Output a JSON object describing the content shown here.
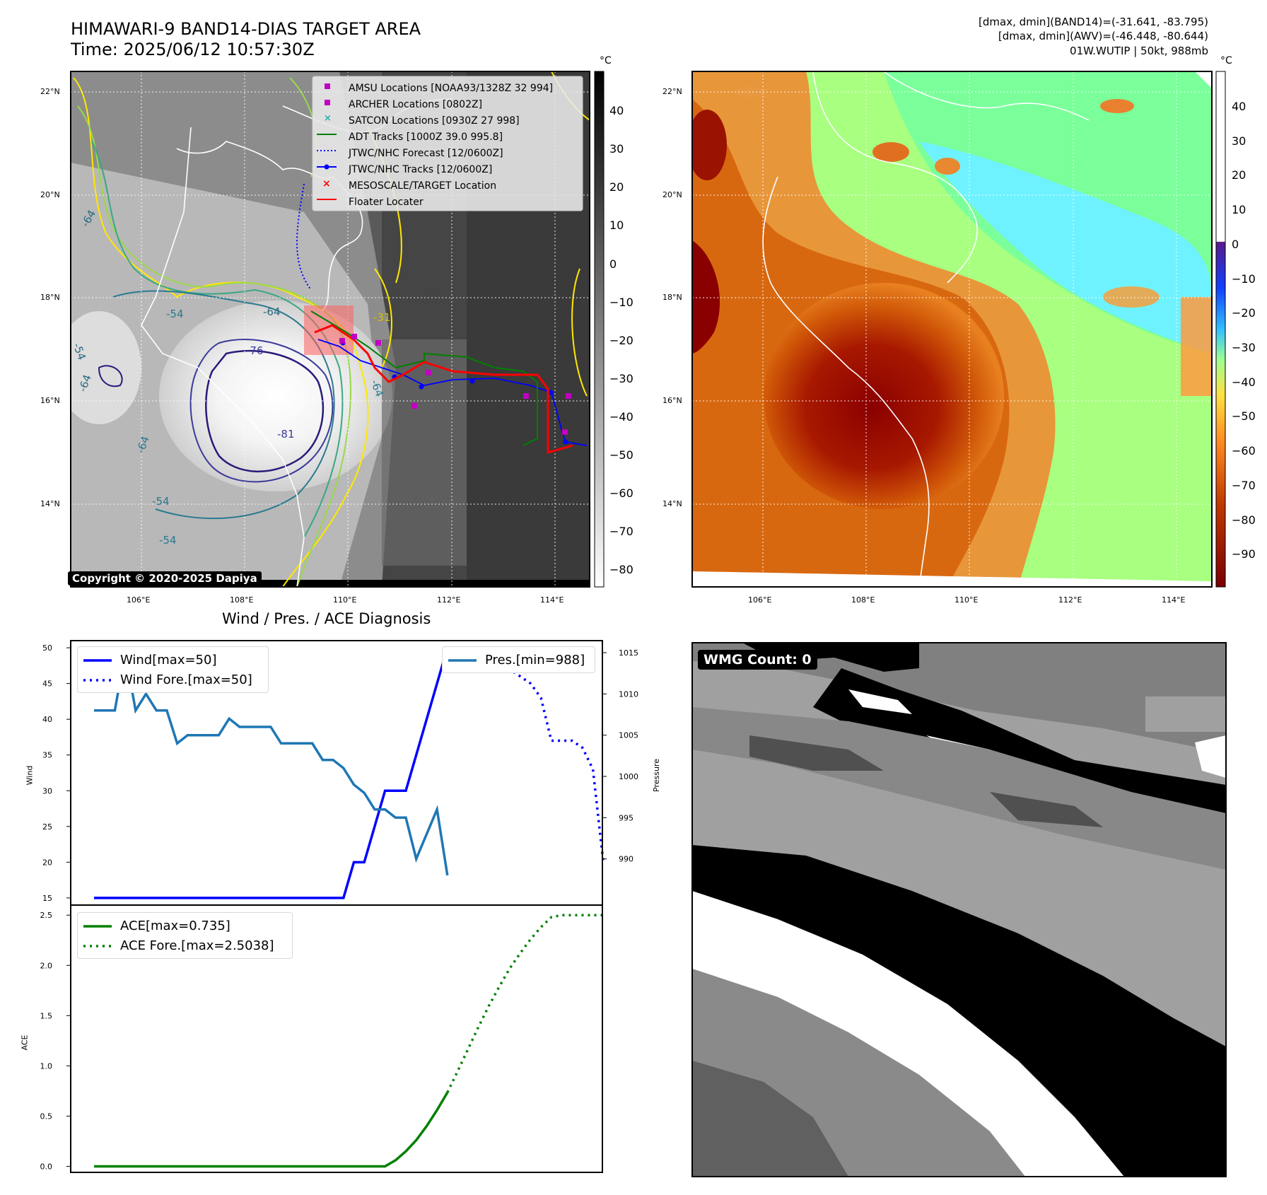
{
  "top_left": {
    "title_line1": "HIMAWARI-9 BAND14-DIAS TARGET AREA",
    "title_line2": "Time: 2025/06/12 10:57:30Z",
    "colorbar_unit": "°C",
    "colorbar_ticks": [
      "40",
      "30",
      "20",
      "10",
      "0",
      "−10",
      "−20",
      "−30",
      "−40",
      "−50",
      "−60",
      "−70",
      "−80"
    ],
    "lat_labels": [
      "22°N",
      "20°N",
      "18°N",
      "16°N",
      "14°N"
    ],
    "lon_labels": [
      "106°E",
      "108°E",
      "110°E",
      "112°E",
      "114°E"
    ],
    "contour_labels": [
      "-64",
      "-54",
      "-64",
      "-54",
      "-64",
      "-76",
      "-81",
      "-64",
      "-54",
      "-54",
      "-31",
      "-64"
    ],
    "copyright": "Copyright © 2020-2025 Dapiya",
    "legend": [
      {
        "label": "AMSU Locations [NOAA93/1328Z 32 994]",
        "color": "#c000c0",
        "marker": "square"
      },
      {
        "label": "ARCHER Locations [0802Z]",
        "color": "#c000c0",
        "marker": "square"
      },
      {
        "label": "SATCON Locations [0930Z 27 998]",
        "color": "#20b2aa",
        "marker": "x"
      },
      {
        "label": "ADT Tracks [1000Z 39.0 995.8]",
        "color": "#008000",
        "marker": "line"
      },
      {
        "label": "JTWC/NHC Forecast [12/0600Z]",
        "color": "#0000ff",
        "marker": "dotted"
      },
      {
        "label": "JTWC/NHC Tracks [12/0600Z]",
        "color": "#0000ff",
        "marker": "line-dot"
      },
      {
        "label": "MESOSCALE/TARGET Location",
        "color": "#ff0000",
        "marker": "x"
      },
      {
        "label": "Floater Locater",
        "color": "#ff0000",
        "marker": "line"
      }
    ]
  },
  "top_right": {
    "header_line1": "[dmax, dmin](BAND14)=(-31.641, -83.795)",
    "header_line2": "[dmax, dmin](AWV)=(-46.448, -80.644)",
    "header_line3": "01W.WUTIP | 50kt, 988mb",
    "colorbar_unit": "°C",
    "colorbar_ticks": [
      "40",
      "30",
      "20",
      "10",
      "0",
      "−10",
      "−20",
      "−30",
      "−40",
      "−50",
      "−60",
      "−70",
      "−80",
      "−90"
    ],
    "lat_labels": [
      "22°N",
      "20°N",
      "18°N",
      "16°N",
      "14°N"
    ],
    "lon_labels": [
      "106°E",
      "108°E",
      "110°E",
      "112°E",
      "114°E"
    ]
  },
  "bottom_right": {
    "wmg_label": "WMG Count: 0"
  },
  "chart_data": [
    {
      "type": "line",
      "title": "Wind / Pres. / ACE Diagnosis",
      "ylabel": "Wind",
      "y2label": "Pressure",
      "ylim": [
        14,
        51
      ],
      "y2lim": [
        988,
        1015
      ],
      "yticks": [
        15,
        20,
        25,
        30,
        35,
        40,
        45,
        50
      ],
      "y2ticks": [
        990,
        995,
        1000,
        1005,
        1010,
        1015
      ],
      "legend_left": [
        "Wind[max=50]",
        "Wind Fore.[max=50]"
      ],
      "legend_right": [
        "Pres.[min=988]"
      ],
      "series": [
        {
          "name": "Wind[max=50]",
          "color": "#0000ff",
          "style": "solid",
          "axis": "left",
          "values": [
            15,
            15,
            15,
            15,
            15,
            15,
            15,
            15,
            15,
            15,
            15,
            15,
            15,
            15,
            15,
            15,
            15,
            15,
            15,
            15,
            15,
            15,
            15,
            15,
            15,
            20,
            20,
            25,
            30,
            30,
            30,
            35,
            40,
            45,
            50
          ]
        },
        {
          "name": "Wind Fore.[max=50]",
          "color": "#0000ff",
          "style": "dotted",
          "axis": "left",
          "x": [
            34,
            35,
            36,
            37,
            38,
            39,
            40,
            41,
            42,
            43,
            44,
            45,
            46,
            47,
            48,
            49
          ],
          "values": [
            50,
            50,
            50,
            50,
            50,
            49,
            47,
            46,
            45,
            43,
            37,
            37,
            37,
            36,
            33,
            20
          ]
        },
        {
          "name": "Pres.[min=988]",
          "color": "#1f77b4",
          "style": "solid",
          "axis": "right",
          "values": [
            1008,
            1008,
            1008,
            1015,
            1008,
            1010,
            1008,
            1008,
            1004,
            1005,
            1005,
            1005,
            1005,
            1007,
            1006,
            1006,
            1006,
            1006,
            1004,
            1004,
            1004,
            1004,
            1002,
            1002,
            1001,
            999,
            998,
            996,
            996,
            995,
            995,
            990,
            993,
            996,
            988
          ]
        }
      ]
    },
    {
      "type": "line",
      "ylabel": "ACE",
      "ylim": [
        -0.06,
        2.6
      ],
      "yticks": [
        0.0,
        0.5,
        1.0,
        1.5,
        2.0,
        2.5
      ],
      "legend": [
        "ACE[max=0.735]",
        "ACE Fore.[max=2.5038]"
      ],
      "series": [
        {
          "name": "ACE[max=0.735]",
          "color": "#008000",
          "style": "solid",
          "values": [
            0,
            0,
            0,
            0,
            0,
            0,
            0,
            0,
            0,
            0,
            0,
            0,
            0,
            0,
            0,
            0,
            0,
            0,
            0,
            0,
            0,
            0,
            0,
            0,
            0,
            0,
            0,
            0,
            0,
            0.06,
            0.15,
            0.26,
            0.4,
            0.56,
            0.735
          ]
        },
        {
          "name": "ACE Fore.[max=2.5038]",
          "color": "#008000",
          "style": "dotted",
          "x": [
            34,
            35,
            36,
            37,
            38,
            39,
            40,
            41,
            42,
            43,
            44,
            45,
            46,
            47,
            48,
            49
          ],
          "values": [
            0.735,
            0.95,
            1.17,
            1.39,
            1.6,
            1.79,
            1.97,
            2.12,
            2.26,
            2.38,
            2.48,
            2.5,
            2.5,
            2.5,
            2.5,
            2.5
          ]
        }
      ]
    }
  ]
}
